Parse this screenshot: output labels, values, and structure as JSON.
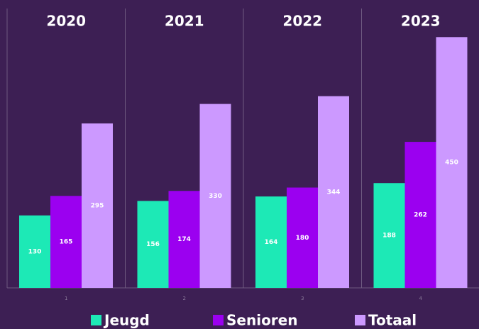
{
  "chart_data": {
    "type": "bar",
    "panel_titles": [
      "2020",
      "2021",
      "2022",
      "2023"
    ],
    "categories": [
      "1",
      "2",
      "3",
      "4"
    ],
    "series": [
      {
        "name": "Jeugd",
        "color": "#1de9b6",
        "values": [
          130,
          156,
          164,
          188
        ]
      },
      {
        "name": "Senioren",
        "color": "#9b00f0",
        "values": [
          165,
          174,
          180,
          262
        ]
      },
      {
        "name": "Totaal",
        "color": "#cc99ff",
        "values": [
          295,
          330,
          344,
          450
        ]
      }
    ],
    "ylim": [
      0,
      500
    ],
    "legend": "bottom"
  }
}
